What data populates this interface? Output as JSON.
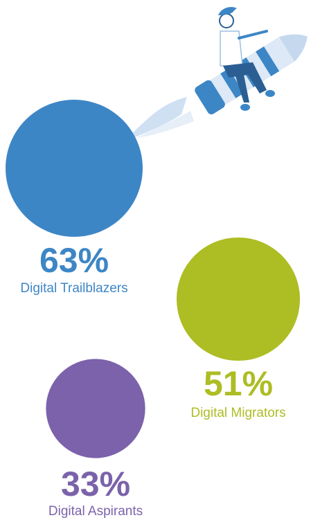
{
  "chart_data": {
    "type": "bubble",
    "categories": [
      "Digital Trailblazers",
      "Digital Migrators",
      "Digital Aspirants"
    ],
    "values": [
      63,
      51,
      33
    ],
    "value_labels": [
      "63%",
      "51%",
      "33%"
    ],
    "colors": [
      "#3d86c6",
      "#adbd24",
      "#7b62aa"
    ]
  }
}
